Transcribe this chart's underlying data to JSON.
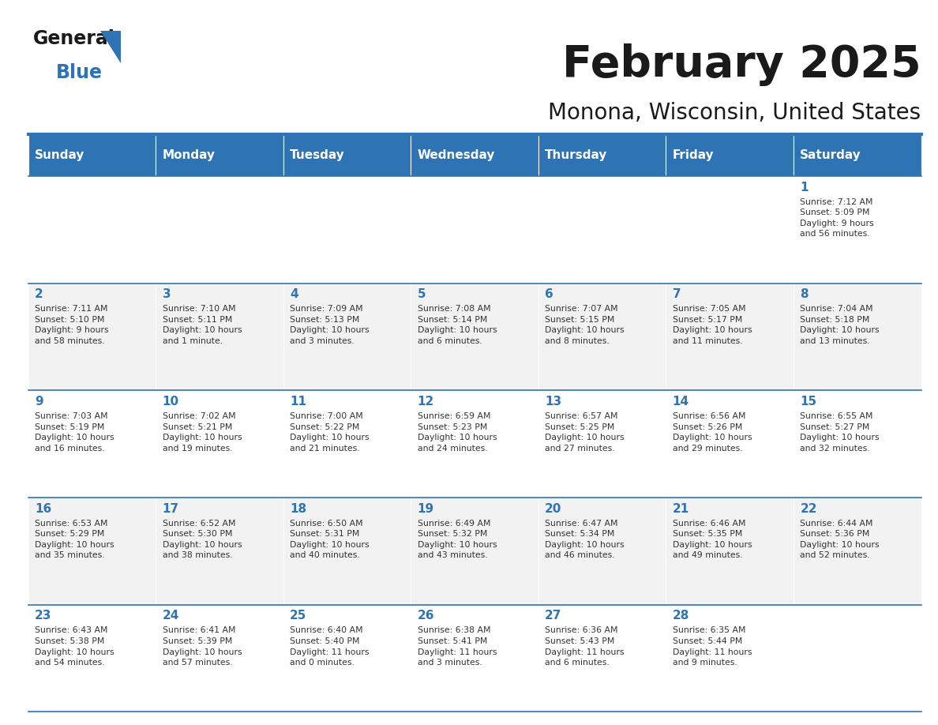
{
  "title": "February 2025",
  "subtitle": "Monona, Wisconsin, United States",
  "header_bg": "#2E74B5",
  "header_text_color": "#FFFFFF",
  "cell_bg_light": "#FFFFFF",
  "cell_bg_dark": "#F2F2F2",
  "border_color": "#2E74B5",
  "day_number_color": "#2E74B5",
  "text_color": "#333333",
  "logo_text_color": "#1a1a1a",
  "logo_blue_color": "#2E74B5",
  "days_of_week": [
    "Sunday",
    "Monday",
    "Tuesday",
    "Wednesday",
    "Thursday",
    "Friday",
    "Saturday"
  ],
  "weeks": [
    [
      {
        "day": null,
        "info": null
      },
      {
        "day": null,
        "info": null
      },
      {
        "day": null,
        "info": null
      },
      {
        "day": null,
        "info": null
      },
      {
        "day": null,
        "info": null
      },
      {
        "day": null,
        "info": null
      },
      {
        "day": 1,
        "info": "Sunrise: 7:12 AM\nSunset: 5:09 PM\nDaylight: 9 hours\nand 56 minutes."
      }
    ],
    [
      {
        "day": 2,
        "info": "Sunrise: 7:11 AM\nSunset: 5:10 PM\nDaylight: 9 hours\nand 58 minutes."
      },
      {
        "day": 3,
        "info": "Sunrise: 7:10 AM\nSunset: 5:11 PM\nDaylight: 10 hours\nand 1 minute."
      },
      {
        "day": 4,
        "info": "Sunrise: 7:09 AM\nSunset: 5:13 PM\nDaylight: 10 hours\nand 3 minutes."
      },
      {
        "day": 5,
        "info": "Sunrise: 7:08 AM\nSunset: 5:14 PM\nDaylight: 10 hours\nand 6 minutes."
      },
      {
        "day": 6,
        "info": "Sunrise: 7:07 AM\nSunset: 5:15 PM\nDaylight: 10 hours\nand 8 minutes."
      },
      {
        "day": 7,
        "info": "Sunrise: 7:05 AM\nSunset: 5:17 PM\nDaylight: 10 hours\nand 11 minutes."
      },
      {
        "day": 8,
        "info": "Sunrise: 7:04 AM\nSunset: 5:18 PM\nDaylight: 10 hours\nand 13 minutes."
      }
    ],
    [
      {
        "day": 9,
        "info": "Sunrise: 7:03 AM\nSunset: 5:19 PM\nDaylight: 10 hours\nand 16 minutes."
      },
      {
        "day": 10,
        "info": "Sunrise: 7:02 AM\nSunset: 5:21 PM\nDaylight: 10 hours\nand 19 minutes."
      },
      {
        "day": 11,
        "info": "Sunrise: 7:00 AM\nSunset: 5:22 PM\nDaylight: 10 hours\nand 21 minutes."
      },
      {
        "day": 12,
        "info": "Sunrise: 6:59 AM\nSunset: 5:23 PM\nDaylight: 10 hours\nand 24 minutes."
      },
      {
        "day": 13,
        "info": "Sunrise: 6:57 AM\nSunset: 5:25 PM\nDaylight: 10 hours\nand 27 minutes."
      },
      {
        "day": 14,
        "info": "Sunrise: 6:56 AM\nSunset: 5:26 PM\nDaylight: 10 hours\nand 29 minutes."
      },
      {
        "day": 15,
        "info": "Sunrise: 6:55 AM\nSunset: 5:27 PM\nDaylight: 10 hours\nand 32 minutes."
      }
    ],
    [
      {
        "day": 16,
        "info": "Sunrise: 6:53 AM\nSunset: 5:29 PM\nDaylight: 10 hours\nand 35 minutes."
      },
      {
        "day": 17,
        "info": "Sunrise: 6:52 AM\nSunset: 5:30 PM\nDaylight: 10 hours\nand 38 minutes."
      },
      {
        "day": 18,
        "info": "Sunrise: 6:50 AM\nSunset: 5:31 PM\nDaylight: 10 hours\nand 40 minutes."
      },
      {
        "day": 19,
        "info": "Sunrise: 6:49 AM\nSunset: 5:32 PM\nDaylight: 10 hours\nand 43 minutes."
      },
      {
        "day": 20,
        "info": "Sunrise: 6:47 AM\nSunset: 5:34 PM\nDaylight: 10 hours\nand 46 minutes."
      },
      {
        "day": 21,
        "info": "Sunrise: 6:46 AM\nSunset: 5:35 PM\nDaylight: 10 hours\nand 49 minutes."
      },
      {
        "day": 22,
        "info": "Sunrise: 6:44 AM\nSunset: 5:36 PM\nDaylight: 10 hours\nand 52 minutes."
      }
    ],
    [
      {
        "day": 23,
        "info": "Sunrise: 6:43 AM\nSunset: 5:38 PM\nDaylight: 10 hours\nand 54 minutes."
      },
      {
        "day": 24,
        "info": "Sunrise: 6:41 AM\nSunset: 5:39 PM\nDaylight: 10 hours\nand 57 minutes."
      },
      {
        "day": 25,
        "info": "Sunrise: 6:40 AM\nSunset: 5:40 PM\nDaylight: 11 hours\nand 0 minutes."
      },
      {
        "day": 26,
        "info": "Sunrise: 6:38 AM\nSunset: 5:41 PM\nDaylight: 11 hours\nand 3 minutes."
      },
      {
        "day": 27,
        "info": "Sunrise: 6:36 AM\nSunset: 5:43 PM\nDaylight: 11 hours\nand 6 minutes."
      },
      {
        "day": 28,
        "info": "Sunrise: 6:35 AM\nSunset: 5:44 PM\nDaylight: 11 hours\nand 9 minutes."
      },
      {
        "day": null,
        "info": null
      }
    ]
  ]
}
